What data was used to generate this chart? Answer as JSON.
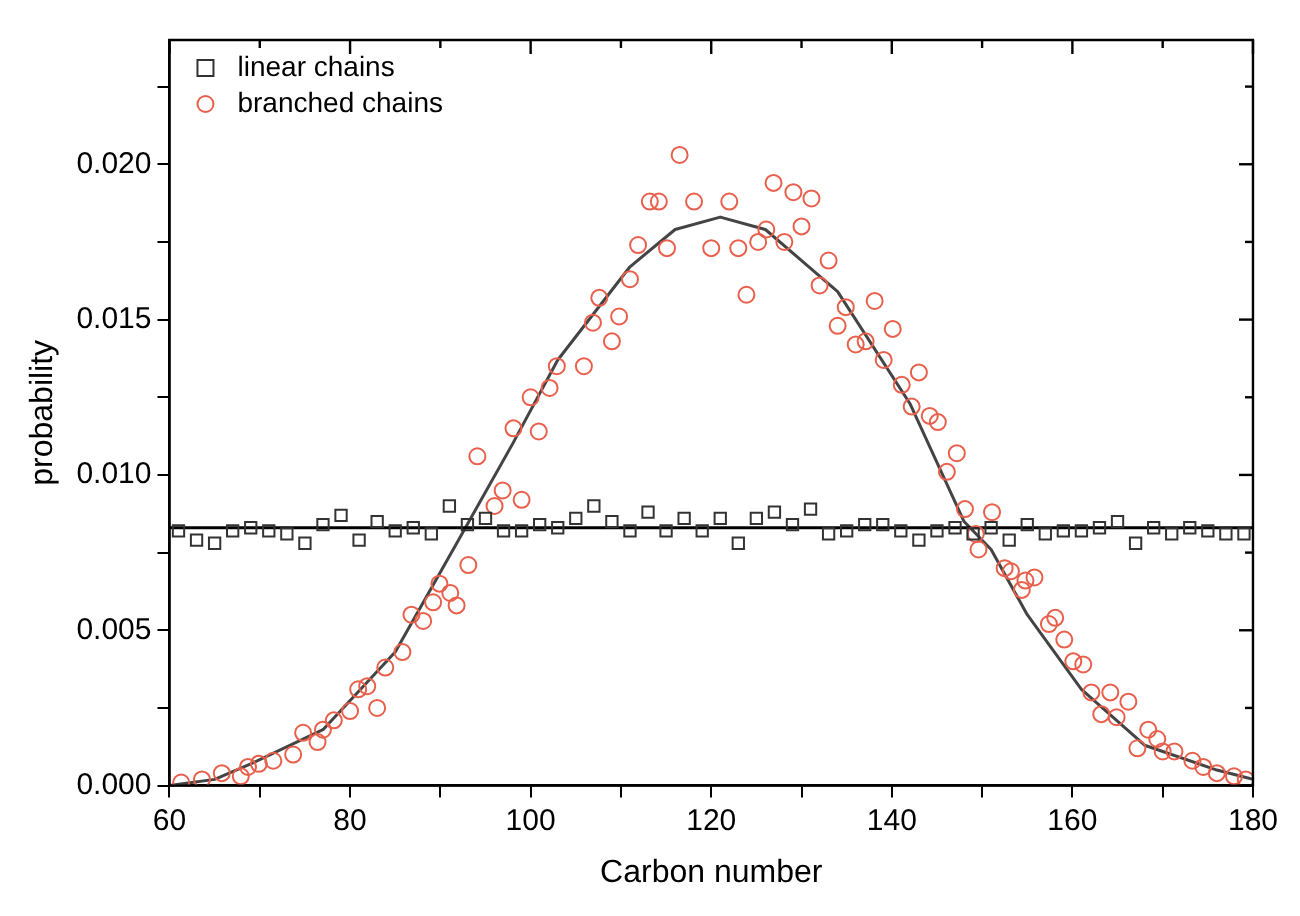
{
  "chart_data": {
    "type": "scatter",
    "xlabel": "Carbon number",
    "ylabel": "probability",
    "xlim": [
      60,
      180
    ],
    "ylim": [
      0,
      0.024
    ],
    "xticks": [
      60,
      {
        "value": 70,
        "label": null
      },
      80,
      {
        "value": 90,
        "label": null
      },
      100,
      {
        "value": 110,
        "label": null
      },
      120,
      {
        "value": 130,
        "label": null
      },
      140,
      {
        "value": 150,
        "label": null
      },
      160,
      {
        "value": 170,
        "label": null
      },
      180
    ],
    "yticks": [
      {
        "value": 0,
        "label": "0.000"
      },
      {
        "value": 0.0025,
        "label": null
      },
      {
        "value": 0.005,
        "label": "0.005"
      },
      {
        "value": 0.0075,
        "label": null
      },
      {
        "value": 0.01,
        "label": "0.010"
      },
      {
        "value": 0.0125,
        "label": null
      },
      {
        "value": 0.015,
        "label": "0.015"
      },
      {
        "value": 0.0175,
        "label": null
      },
      {
        "value": 0.02,
        "label": "0.020"
      },
      {
        "value": 0.0225,
        "label": null
      }
    ],
    "grid": false,
    "legend": "top left",
    "series": [
      {
        "name": "linear chains",
        "type": "scatter",
        "marker": "square",
        "color": "#333333",
        "x": [
          61,
          63,
          65,
          67,
          69,
          71,
          73,
          75,
          77,
          79,
          81,
          83,
          85,
          87,
          89,
          91,
          93,
          95,
          97,
          99,
          101,
          103,
          105,
          107,
          109,
          111,
          113,
          115,
          117,
          119,
          121,
          123,
          125,
          127,
          129,
          131,
          133,
          135,
          137,
          139,
          141,
          143,
          145,
          147,
          149,
          151,
          153,
          155,
          157,
          159,
          161,
          163,
          165,
          167,
          169,
          171,
          173,
          175,
          177,
          179
        ],
        "values": [
          0.0082,
          0.0079,
          0.0078,
          0.0082,
          0.0083,
          0.0082,
          0.0081,
          0.0078,
          0.0084,
          0.0087,
          0.0079,
          0.0085,
          0.0082,
          0.0083,
          0.0081,
          0.009,
          0.0084,
          0.0086,
          0.0082,
          0.0082,
          0.0084,
          0.0083,
          0.0086,
          0.009,
          0.0085,
          0.0082,
          0.0088,
          0.0082,
          0.0086,
          0.0082,
          0.0086,
          0.0078,
          0.0086,
          0.0088,
          0.0084,
          0.0089,
          0.0081,
          0.0082,
          0.0084,
          0.0084,
          0.0082,
          0.0079,
          0.0082,
          0.0083,
          0.0081,
          0.0083,
          0.0079,
          0.0084,
          0.0081,
          0.0082,
          0.0082,
          0.0083,
          0.0085,
          0.0078,
          0.0083,
          0.0081,
          0.0083,
          0.0082,
          0.0081,
          0.0081
        ]
      },
      {
        "name": "branched chains",
        "type": "scatter",
        "marker": "circle",
        "color": "#e8604c",
        "x": [
          61.3,
          63.6,
          65.8,
          67.9,
          68.7,
          69.9,
          71.5,
          73.7,
          74.8,
          76.4,
          77,
          78.2,
          80,
          80.9,
          81.9,
          83,
          83.9,
          85.8,
          86.8,
          88.1,
          89.2,
          89.9,
          91.1,
          91.8,
          93.1,
          94.1,
          96,
          96.9,
          98.1,
          99,
          100,
          100.9,
          102.1,
          102.9,
          105.9,
          106.9,
          107.6,
          109,
          109.8,
          111,
          111.9,
          113.2,
          114.2,
          115.1,
          116.5,
          118.1,
          120,
          122,
          123,
          123.9,
          125.2,
          126.1,
          126.9,
          128.1,
          129.1,
          130,
          131.1,
          132,
          133,
          134,
          134.9,
          136,
          137.1,
          138.1,
          139.1,
          140.1,
          141.1,
          142.2,
          143,
          144.2,
          145.1,
          146.1,
          147.2,
          148.1,
          149.3,
          149.6,
          151.1,
          152.5,
          153.2,
          154.4,
          154.8,
          155.8,
          157.4,
          158.1,
          159.1,
          160.1,
          161.2,
          162.1,
          163.2,
          164.2,
          164.9,
          166.2,
          167.2,
          168.4,
          169.4,
          170,
          171.3,
          173.3,
          174.5,
          176,
          177.9,
          179.2
        ],
        "values": [
          0.0001,
          0.0002,
          0.0004,
          0.0003,
          0.0006,
          0.0007,
          0.0008,
          0.001,
          0.0017,
          0.0014,
          0.0018,
          0.0021,
          0.0024,
          0.0031,
          0.0032,
          0.0025,
          0.0038,
          0.0043,
          0.0055,
          0.0053,
          0.0059,
          0.0065,
          0.0062,
          0.0058,
          0.0071,
          0.0106,
          0.009,
          0.0095,
          0.0115,
          0.0092,
          0.0125,
          0.0114,
          0.0128,
          0.0135,
          0.0135,
          0.0149,
          0.0157,
          0.0143,
          0.0151,
          0.0163,
          0.0174,
          0.0188,
          0.0188,
          0.0173,
          0.0203,
          0.0188,
          0.0173,
          0.0188,
          0.0173,
          0.0158,
          0.0175,
          0.0179,
          0.0194,
          0.0175,
          0.0191,
          0.018,
          0.0189,
          0.0161,
          0.0169,
          0.0148,
          0.0154,
          0.0142,
          0.0143,
          0.0156,
          0.0137,
          0.0147,
          0.0129,
          0.0122,
          0.0133,
          0.0119,
          0.0117,
          0.0101,
          0.0107,
          0.0089,
          0.0081,
          0.0076,
          0.0088,
          0.007,
          0.0069,
          0.0063,
          0.0066,
          0.0067,
          0.0052,
          0.0054,
          0.0047,
          0.004,
          0.0039,
          0.003,
          0.0023,
          0.003,
          0.0022,
          0.0027,
          0.0012,
          0.0018,
          0.0015,
          0.0011,
          0.0011,
          0.0008,
          0.0006,
          0.0004,
          0.0003,
          0.0002
        ]
      },
      {
        "type": "line",
        "color": "#000000",
        "x": [
          60,
          180
        ],
        "values": [
          0.0083,
          0.0083
        ]
      },
      {
        "type": "line",
        "color": "#444444",
        "x": [
          60,
          65,
          69,
          77,
          85,
          92,
          98,
          103,
          111,
          116,
          121,
          126,
          134,
          142,
          148,
          151,
          155,
          161,
          168,
          176,
          180
        ],
        "values": [
          0,
          0.0002,
          0.0007,
          0.0018,
          0.0043,
          0.0079,
          0.011,
          0.0137,
          0.0167,
          0.0179,
          0.0183,
          0.0179,
          0.0159,
          0.0123,
          0.0085,
          0.0076,
          0.0055,
          0.0031,
          0.0013,
          0.0005,
          0.0002
        ]
      }
    ]
  }
}
